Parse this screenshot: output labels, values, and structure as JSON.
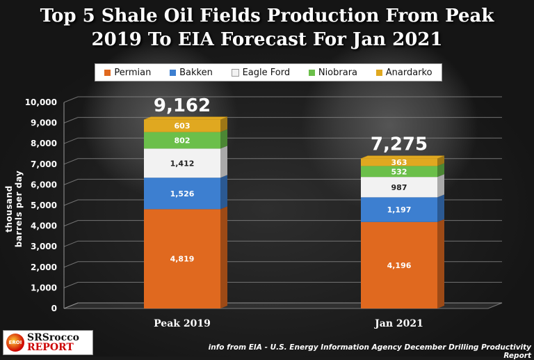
{
  "title_line1": "Top 5 Shale Oil Fields Production From Peak",
  "title_line2": "2019 To EIA Forecast For Jan 2021",
  "ylabel": "thousand barrels per day",
  "source": "info from EIA - U.S. Energy Information Agency  December Drilling Productivity Report",
  "logo": {
    "mark": "EROI",
    "line1": "SRSrocco",
    "line2": "REPORT"
  },
  "chart_data": {
    "type": "bar",
    "stacked": true,
    "categories": [
      "Peak 2019",
      "Jan 2021"
    ],
    "series": [
      {
        "name": "Permian",
        "color": "#e0691f",
        "values": [
          4819,
          4196
        ]
      },
      {
        "name": "Bakken",
        "color": "#3d7fd0",
        "values": [
          1526,
          1197
        ]
      },
      {
        "name": "Eagle Ford",
        "color": "#f2f2f2",
        "values": [
          1412,
          987
        ]
      },
      {
        "name": "Niobrara",
        "color": "#6bbf4a",
        "values": [
          802,
          532
        ]
      },
      {
        "name": "Anardarko",
        "color": "#e0a820",
        "values": [
          603,
          363
        ]
      }
    ],
    "value_labels": [
      [
        "4,819",
        "1,526",
        "1,412",
        "802",
        "603"
      ],
      [
        "4,196",
        "1,197",
        "987",
        "532",
        "363"
      ]
    ],
    "totals": [
      "9,162",
      "7,275"
    ],
    "ylim": [
      0,
      10000
    ],
    "yticks": [
      "0",
      "1,000",
      "2,000",
      "3,000",
      "4,000",
      "5,000",
      "6,000",
      "7,000",
      "8,000",
      "9,000",
      "10,000"
    ],
    "grid": true,
    "legend": "top"
  }
}
